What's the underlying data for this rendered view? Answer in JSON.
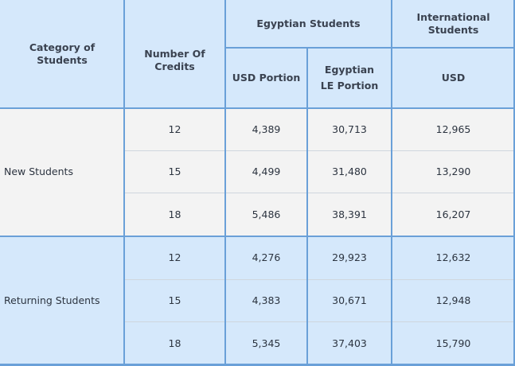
{
  "table": {
    "headers": {
      "category": "Category of Students",
      "credits": "Number Of Credits",
      "egyptian_group": "Egyptian Students",
      "international_group": "International Students",
      "usd_portion": "USD Portion",
      "egp_portion": "Egyptian LE Portion",
      "intl_usd": "USD"
    },
    "groups": [
      {
        "label": "New Students",
        "rows": [
          {
            "credits": "12",
            "usd": "4,389",
            "egp": "30,713",
            "intl": "12,965"
          },
          {
            "credits": "15",
            "usd": "4,499",
            "egp": "31,480",
            "intl": "13,290"
          },
          {
            "credits": "18",
            "usd": "5,486",
            "egp": "38,391",
            "intl": "16,207"
          }
        ]
      },
      {
        "label": "Returning Students",
        "rows": [
          {
            "credits": "12",
            "usd": "4,276",
            "egp": "29,923",
            "intl": "12,632"
          },
          {
            "credits": "15",
            "usd": "4,383",
            "egp": "30,671",
            "intl": "12,948"
          },
          {
            "credits": "18",
            "usd": "5,345",
            "egp": "37,403",
            "intl": "15,790"
          }
        ]
      }
    ]
  }
}
